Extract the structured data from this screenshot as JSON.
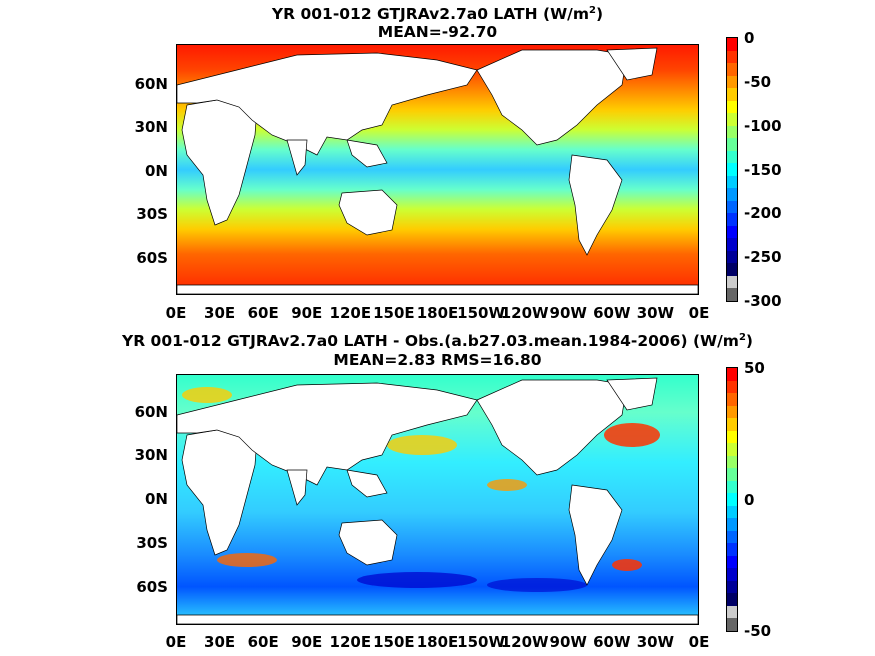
{
  "chart_data": [
    {
      "type": "heatmap",
      "title": "YR 001-012 GTJRAv2.7a0  LATH (W/m",
      "title_sup": "2",
      "title_tail": ")",
      "subtitle": "MEAN=-92.70",
      "x_ticks": [
        "0E",
        "30E",
        "60E",
        "90E",
        "120E",
        "150E",
        "180E",
        "150W",
        "120W",
        "90W",
        "60W",
        "30W",
        "0E"
      ],
      "y_ticks": [
        "60N",
        "30N",
        "0N",
        "30S",
        "60S"
      ],
      "colorbar": {
        "ticks": [
          "0",
          "-50",
          "-100",
          "-150",
          "-200",
          "-250",
          "-300"
        ],
        "range": [
          -300,
          0
        ],
        "colors": [
          "#ff0000",
          "#ff3300",
          "#ff6600",
          "#ff9900",
          "#ffcc00",
          "#ffff00",
          "#ccff33",
          "#99ff66",
          "#66ff99",
          "#33ffcc",
          "#00ffff",
          "#00ccff",
          "#0099ff",
          "#0066ff",
          "#0033ff",
          "#0000ff",
          "#0000cc",
          "#000099",
          "#000066",
          "#cccccc",
          "#666666"
        ]
      },
      "mean": -92.7
    },
    {
      "type": "heatmap",
      "title": "YR 001-012 GTJRAv2.7a0 LATH - Obs.(a.b27.03.mean.1984-2006) (W/m",
      "title_sup": "2",
      "title_tail": ")",
      "subtitle": "MEAN=2.83 RMS=16.80",
      "x_ticks": [
        "0E",
        "30E",
        "60E",
        "90E",
        "120E",
        "150E",
        "180E",
        "150W",
        "120W",
        "90W",
        "60W",
        "30W",
        "0E"
      ],
      "y_ticks": [
        "60N",
        "30N",
        "0N",
        "30S",
        "60S"
      ],
      "colorbar": {
        "ticks": [
          "50",
          "0",
          "-50"
        ],
        "range": [
          -50,
          50
        ],
        "colors": [
          "#ff0000",
          "#ff3300",
          "#ff6600",
          "#ff9900",
          "#ffcc00",
          "#ffff00",
          "#ccff33",
          "#99ff66",
          "#66ff99",
          "#33ffcc",
          "#00ffff",
          "#00ccff",
          "#0099ff",
          "#0066ff",
          "#0033ff",
          "#0000ff",
          "#0000cc",
          "#000099",
          "#000066",
          "#cccccc",
          "#666666"
        ]
      },
      "mean": 2.83,
      "rms": 16.8
    }
  ]
}
